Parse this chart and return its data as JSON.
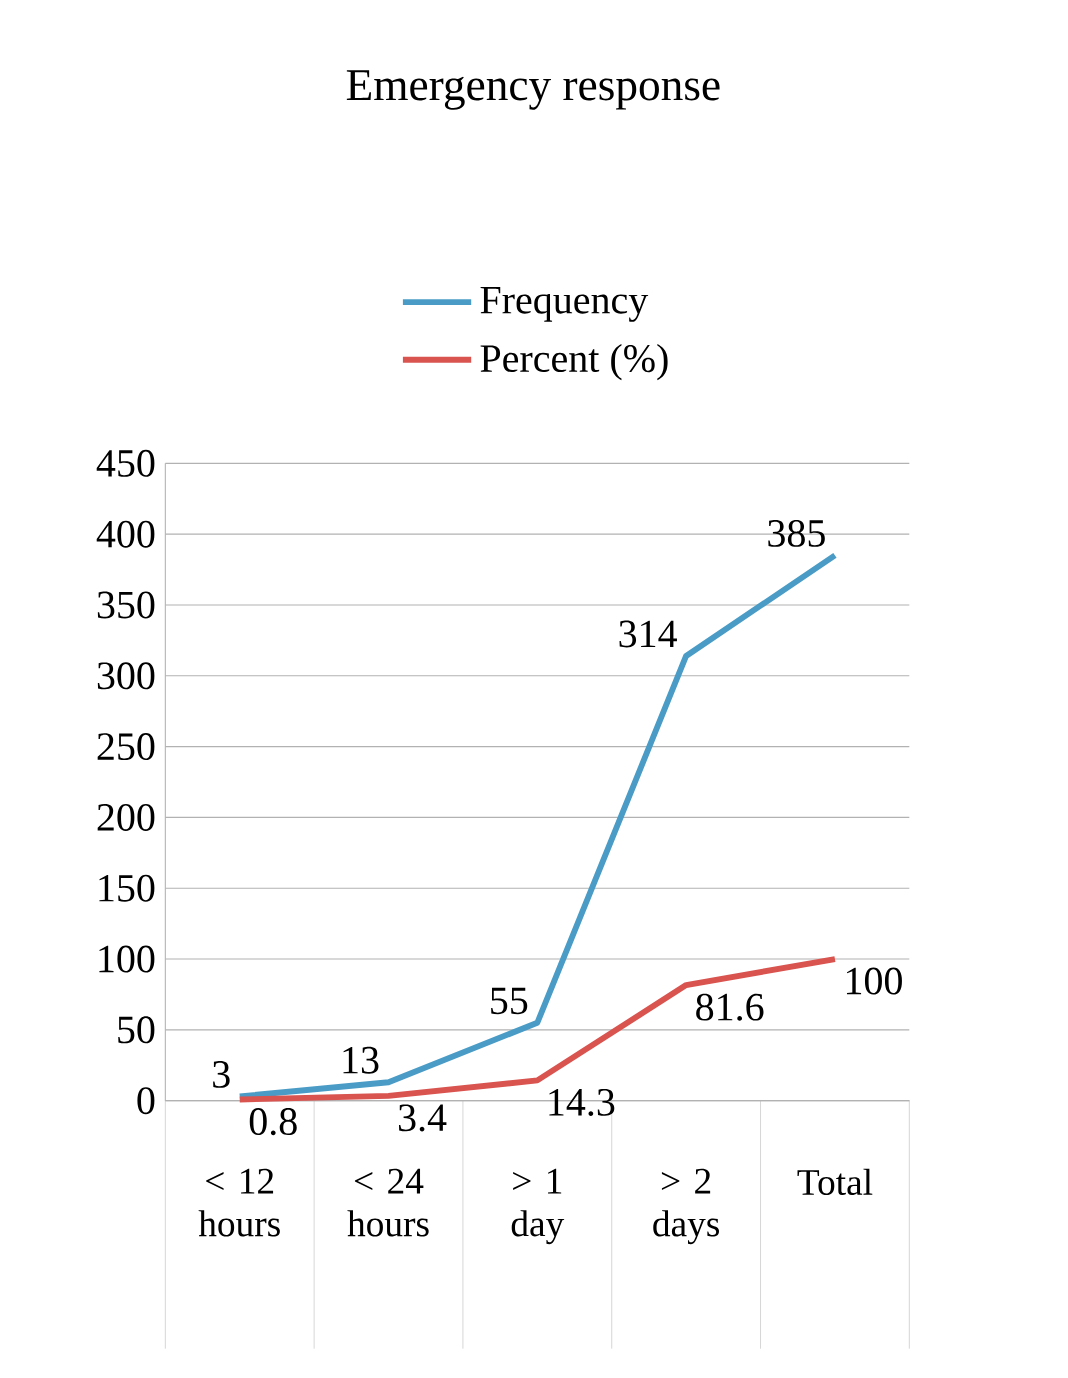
{
  "chart_data": {
    "type": "line",
    "title": "Emergency response",
    "categories": [
      "< 12 hours",
      "< 24 hours",
      "> 1 day",
      "> 2 days",
      "Total"
    ],
    "series": [
      {
        "name": "Frequency",
        "color": "#4a9cc6",
        "values": [
          3,
          13,
          55,
          314,
          385
        ]
      },
      {
        "name": "Percent (%)",
        "color": "#d9534f",
        "values": [
          0.8,
          3.4,
          14.3,
          81.6,
          100
        ]
      }
    ],
    "ylim": [
      0,
      450
    ],
    "yticks": [
      0,
      50,
      100,
      150,
      200,
      250,
      300,
      350,
      400,
      450
    ],
    "grid": "y",
    "legend": "top",
    "data_labels": true,
    "marker": "none",
    "line_style": "solid"
  }
}
